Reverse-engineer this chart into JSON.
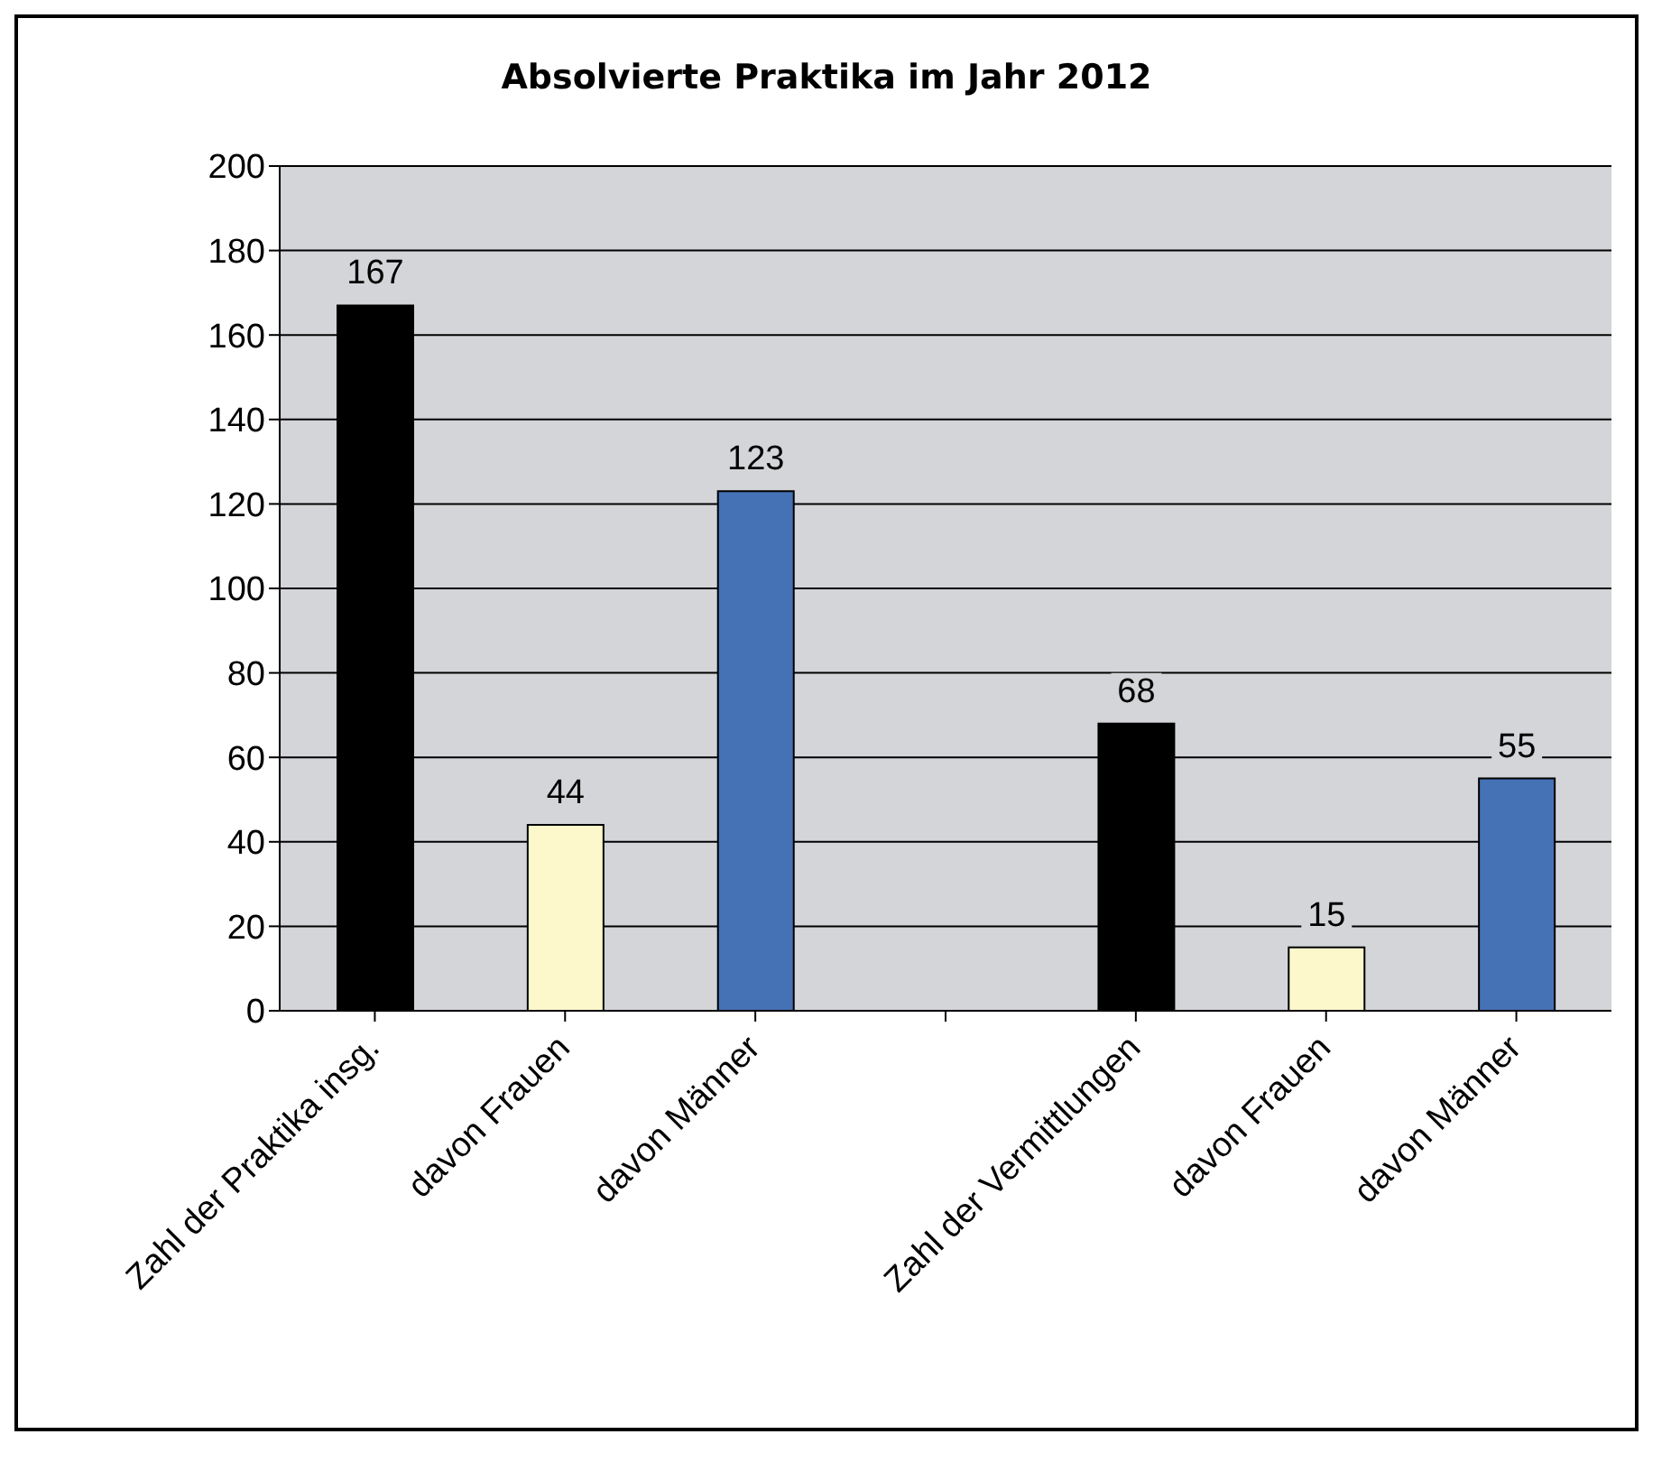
{
  "chart_data": {
    "type": "bar",
    "title": "Absolvierte Praktika im Jahr 2012",
    "categories": [
      "Zahl der Praktika insg.",
      "davon Frauen",
      "davon Männer",
      null,
      "Zahl der Vermittlungen",
      "davon Frauen",
      "davon Männer"
    ],
    "values": [
      167,
      44,
      123,
      null,
      68,
      15,
      55
    ],
    "colors": [
      "#000000",
      "#fdf8cc",
      "#4571b5",
      "#000000",
      "#000000",
      "#fdf8cc",
      "#4571b5"
    ],
    "ylim": [
      0,
      200
    ],
    "yticks": [
      0,
      20,
      40,
      60,
      80,
      100,
      120,
      140,
      160,
      180,
      200
    ],
    "grid": "y",
    "data_labels": true
  }
}
